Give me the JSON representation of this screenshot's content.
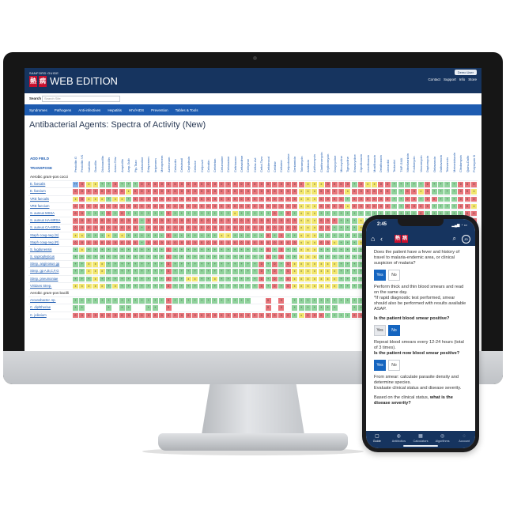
{
  "colors": {
    "R": "#e8747a",
    "Y": "#f2e66e",
    "G": "#8fd29b",
    "B": "#7fb0ea",
    "W": "#ffffff",
    "D": "#a9b1bd"
  },
  "web": {
    "brand": "SANFORD GUIDE",
    "logo": [
      "熱",
      "病"
    ],
    "title": "WEB EDITION",
    "demo_label": "Demo User",
    "links": [
      "Contact",
      "Support",
      "Info",
      "Store"
    ],
    "search_label": "Search",
    "search_placeholder": "Search Site",
    "nav": [
      "Syndromes",
      "Pathogens",
      "Anti-infectives",
      "Hepatitis",
      "HIV/AIDS",
      "Prevention",
      "Tables & Tools"
    ],
    "page_title": "Antibacterial Agents: Spectra of Activity (New)",
    "add_field": "ADD FIELD",
    "transpose": "TRANSPOSE",
    "columns": [
      "Penicillin G",
      "Penicillin VK",
      "Nafcillin",
      "Oxacillin",
      "Dicloxacillin",
      "Amoxicillin",
      "Amox-Clav",
      "Ampicillin",
      "Amp-Sulb",
      "Pip-Tazo",
      "Ceftaroline",
      "Ertapenem",
      "Imipenem",
      "Meropenem",
      "Aztreonam",
      "Cefazolin",
      "Cefadroxil",
      "Cephalexin",
      "Cefaclor",
      "Cefprozil",
      "Cefoxitin",
      "Cefotetan",
      "Cefuroxime",
      "Cefotaxime",
      "Ceftriaxone",
      "Ceftazidime",
      "Cefepime",
      "Ceftaz-Avi",
      "Ceftol-Tazo",
      "Cefiderocol",
      "Cefdinir",
      "Cefixime",
      "Cefpodoxime",
      "Gentamicin",
      "Tobramycin",
      "Amikacin",
      "Azithromycin",
      "Clarithromycin",
      "Erythromycin",
      "Doxycycline",
      "Minocycline",
      "Tigecycline",
      "Eravacycline",
      "Ciprofloxacin",
      "Levofloxacin",
      "Moxifloxacin",
      "Delafloxacin",
      "Linezolid",
      "Tedizolid",
      "TMP-SMX",
      "Nitrofurantoin",
      "Fosfomycin",
      "Vancomycin",
      "Daptomycin",
      "Oritavancin",
      "Dalbavancin",
      "Telavancin",
      "Metronidazole",
      "Clindamycin",
      "Quinu-Dalfo",
      "Polymyxin B",
      "Colistin",
      "Clear All"
    ],
    "rows": [
      {
        "name": "Aerobic gram-pos cocci",
        "group": true
      },
      {
        "name": "E. faecalis",
        "pat": "BRYYGGRGGGRRRRRRRRRRRRRRRRRRRRRRRRRYYYRRRRGRYYRRGGGGGRGGGGRRR"
      },
      {
        "name": "E. faecium",
        "pat": "RRRRRRRRYRRRRRRRRRRRRRRRRRRRRRRRRRYYYRRRRYRRRRRRGGRRYRGGGGRRY"
      },
      {
        "name": "VRE faecalis",
        "pat": "YRYYYGYYGRRRRRRRRRRRRRRRRRRRRRRRRRYYYRRRRGRRRRRRGGRRGRRGGGRRR"
      },
      {
        "name": "VRE faecium",
        "pat": "RRRRRRRRRRRRRRRRRRRRRRRRRRRRRRRRRRYYYRRRRYRRRRRRGGRRRRGGGGRRY"
      },
      {
        "name": "S. aureus MSSA",
        "pat": "RRGGGRGRGGGGGGRGGGGGGGGGYGGGGGRGRGYYYGGGGGGGGGGGGGGGRGGGGGGRR"
      },
      {
        "name": "S. aureus HA-MRSA",
        "pat": "RRRRRRRRRRGRRRRRRRRRRRRRRRRRRRRRRRYYYRRRGGGYGYYYGGGGRGGGGGGRR"
      },
      {
        "name": "S. aureus CA-MRSA",
        "pat": "RRRRRRRRRRGRRRRRRRRRRRRRRRRRRRRRRRYYYRRGGGGYGGGGGGGGRGGGGGGRR"
      },
      {
        "name": "Staph coag-neg (S)",
        "pat": "YYGGGYGYGGGGGGRGGGGGGGYYGGGGGRGRGGYYYGGGGGGGGGGGGGGGRGGGGGGRR"
      },
      {
        "name": "Staph coag-neg (R)",
        "pat": "RRRRRRRRRRGRRRRRRRRRRRRRRRRRRRRRRRYYYRRYGGGYYGGGGGGGRGGGGGGRR"
      },
      {
        "name": "S. lugdunensis",
        "pat": "GYGGGGGGGGGGGGRGGGGGGGGGGGGGGRGRGGYYYGGGGGGGGGGGGGGGRGGGGGGRR"
      },
      {
        "name": "S. saprophyticus",
        "pat": "GGGGGGGGGGGGGGRGGGGGGGGGGGGGGRGRGGYYYGGGGGGGGGGGGGGGGGGGGGGRR"
      },
      {
        "name": "Strep. anginosus gp",
        "pat": "GGYYYGGGGGGGGGRGGGGGGGGGGGGGRGRGRYYYYYYYGGGGGGGGRGRGGGGGGGRRR"
      },
      {
        "name": "Strep. gp A,B,C,F,G",
        "pat": "GGYYYGGGGGGGGGRGGGGGGGGGGGGGRGRGRYYYYYYYGGGGGGGGYGRGGGGGGGRRR"
      },
      {
        "name": "Strep. pneumoniae",
        "pat": "GGGYGGGGGGGGGGRGGYYGGYGGGGGGRGRGRYYYYYYYGGGGGGGGGGRGGGGGGGRRR"
      },
      {
        "name": "Viridans Strep.",
        "pat": "YYYYYGYGGGGGGGRGGGGGGGGGGGGGRGRGRYYYYYYYGGGGGGGGYGRGGGGGGGRRR"
      },
      {
        "name": "Aerobic gram-pos bacilli",
        "group": true
      },
      {
        "name": "Arcanobacter. sp.",
        "pat": "GGGGGGGGGGGGGGRGGGGGGGGGGGGWWRWRWGGGGGGGGGGGGGGGGGGRGGGGGGGRR"
      },
      {
        "name": "C. diphtheriae",
        "pat": "GGWWWGWGGWWGGWRWWWWWWWWWWWWWWRWRWGGGGGGGWWGGGGGGGWRWGGWWWWGRR"
      },
      {
        "name": "C. jeikeium",
        "pat": "RRRRRRRRRRRRRRRRRRRRRRRRRRRRRRRRRGYRRRGGGGRRRRRGGGRRRGGGGGRRR"
      }
    ]
  },
  "phone": {
    "time": "2:45",
    "signal": "▂▄▆ ◔ ▭",
    "logo": [
      "熱",
      "病"
    ],
    "avatar": "JD",
    "q1": "Does the patient have a fever and history of travel to malaria-endemic area, or clinical suspicion of malaria?",
    "yes": "Yes",
    "no": "No",
    "q2a": "Perform thick and thin blood smears and read on the same day.",
    "q2b": "*If rapid diagnostic test performed, smear should also be performed with results available ASAP.",
    "q2c": "Is the patient blood smear positive?",
    "q3a": "Repeat blood smears every 12-24 hours (total of 3 times).",
    "q3b": "Is the patient now blood smear positive?",
    "q4a": "From smear: calculate parasite density and determine species.",
    "q4b": "Evaluate clinical status and disease severity.",
    "q5a": "Based on the clinical status,",
    "q5b": "what is the disease severity?",
    "tabs": [
      "Guide",
      "Antibiotics",
      "Calculators",
      "Algorithms",
      "Account"
    ],
    "tab_icons": [
      "▢",
      "◍",
      "▦",
      "◎",
      "◌"
    ]
  }
}
